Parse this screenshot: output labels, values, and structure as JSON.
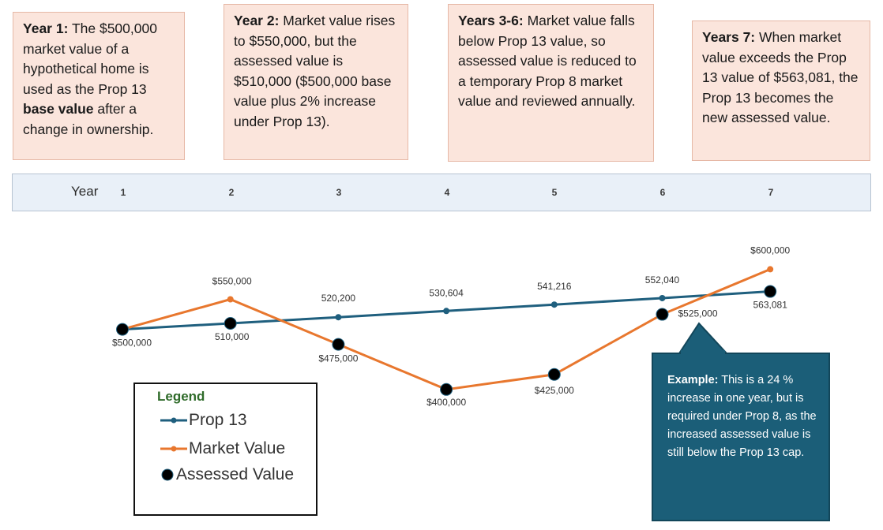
{
  "notes": [
    {
      "bold": "Year 1:",
      "text": " The $500,000 market value of a hypothetical home is used as the Prop 13 ",
      "bold2": "base value",
      "text2": " after a change in ownership."
    },
    {
      "bold": "Year 2:",
      "text": " Market value rises to $550,000, but the assessed value is $510,000 ($500,000 base value plus 2% increase under Prop 13).",
      "bold2": "",
      "text2": ""
    },
    {
      "bold": "Years 3-6:",
      "text": " Market value falls below Prop 13 value, so assessed value is reduced to a temporary Prop 8 market value and reviewed annually.",
      "bold2": "",
      "text2": ""
    },
    {
      "bold": "Years 7:",
      "text": " When market value exceeds the Prop 13 value of $563,081, the Prop 13  becomes the new assessed value.",
      "bold2": "",
      "text2": ""
    }
  ],
  "year_bar": {
    "label": "Year",
    "years": [
      "1",
      "2",
      "3",
      "4",
      "5",
      "6",
      "7"
    ]
  },
  "legend": {
    "title": "Legend",
    "items": [
      "Prop 13",
      "Market Value",
      "Assessed Value"
    ]
  },
  "callout": {
    "bold": "Example:",
    "text": " This is a 24 % increase in one year, but is required under Prop 8, as the increased assessed value is still below the Prop 13 cap."
  },
  "colors": {
    "prop13": "#1f5f7e",
    "market": "#e8772e",
    "assessed": "#000000",
    "callout_bg": "#1b5e78",
    "note_bg": "#fbe5dc"
  },
  "chart_data": {
    "type": "line",
    "x": [
      1,
      2,
      3,
      4,
      5,
      6,
      7
    ],
    "xlabel": "Year",
    "series": [
      {
        "name": "Prop 13",
        "values": [
          500000,
          510000,
          520200,
          530604,
          541216,
          552040,
          563081
        ],
        "labels": [
          "",
          "510,000",
          "520,200",
          "530,604",
          "541,216",
          "552,040",
          "563,081"
        ]
      },
      {
        "name": "Market Value",
        "values": [
          500000,
          550000,
          475000,
          400000,
          425000,
          525000,
          600000
        ],
        "labels": [
          "$500,000",
          "$550,000",
          "$475,000",
          "$400,000",
          "$425,000",
          "$525,000",
          "$600,000"
        ]
      },
      {
        "name": "Assessed Value",
        "values": [
          500000,
          510000,
          475000,
          400000,
          425000,
          525000,
          563081
        ]
      }
    ],
    "grid": false
  }
}
